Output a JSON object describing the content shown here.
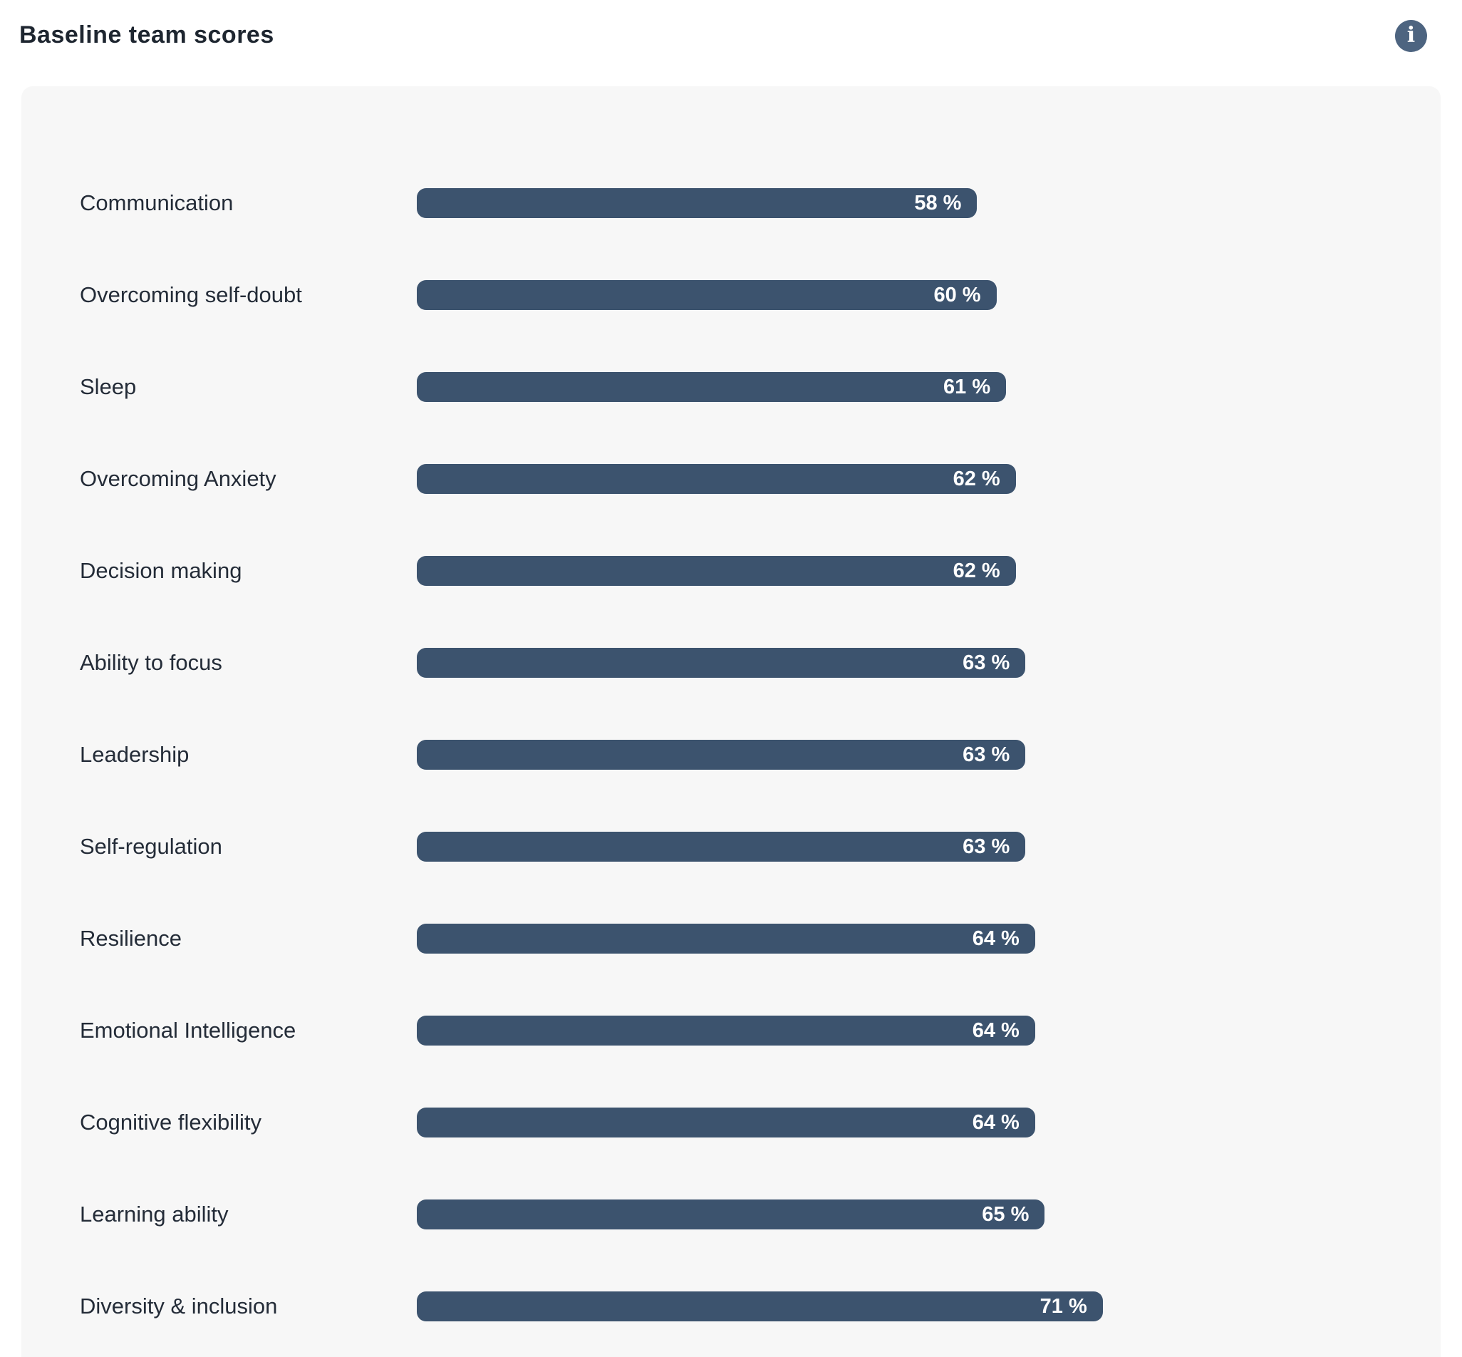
{
  "header": {
    "title": "Baseline team scores",
    "info_glyph": "i"
  },
  "chart_data": {
    "type": "bar",
    "orientation": "horizontal",
    "title": "Baseline team scores",
    "categories": [
      "Communication",
      "Overcoming self-doubt",
      "Sleep",
      "Overcoming Anxiety",
      "Decision making",
      "Ability to focus",
      "Leadership",
      "Self-regulation",
      "Resilience",
      "Emotional Intelligence",
      "Cognitive flexibility",
      "Learning ability",
      "Diversity & inclusion"
    ],
    "values": [
      58,
      60,
      61,
      62,
      62,
      63,
      63,
      63,
      64,
      64,
      64,
      65,
      71
    ],
    "value_suffix": " %",
    "xlim": [
      0,
      100
    ],
    "grid": false,
    "legend": false,
    "colors": {
      "bar": "#3c536e",
      "card_background": "#f7f7f7",
      "label_text": "#242c38",
      "value_text": "#ffffff",
      "title_text": "#1e2630",
      "info_button": "#4d6480"
    }
  }
}
